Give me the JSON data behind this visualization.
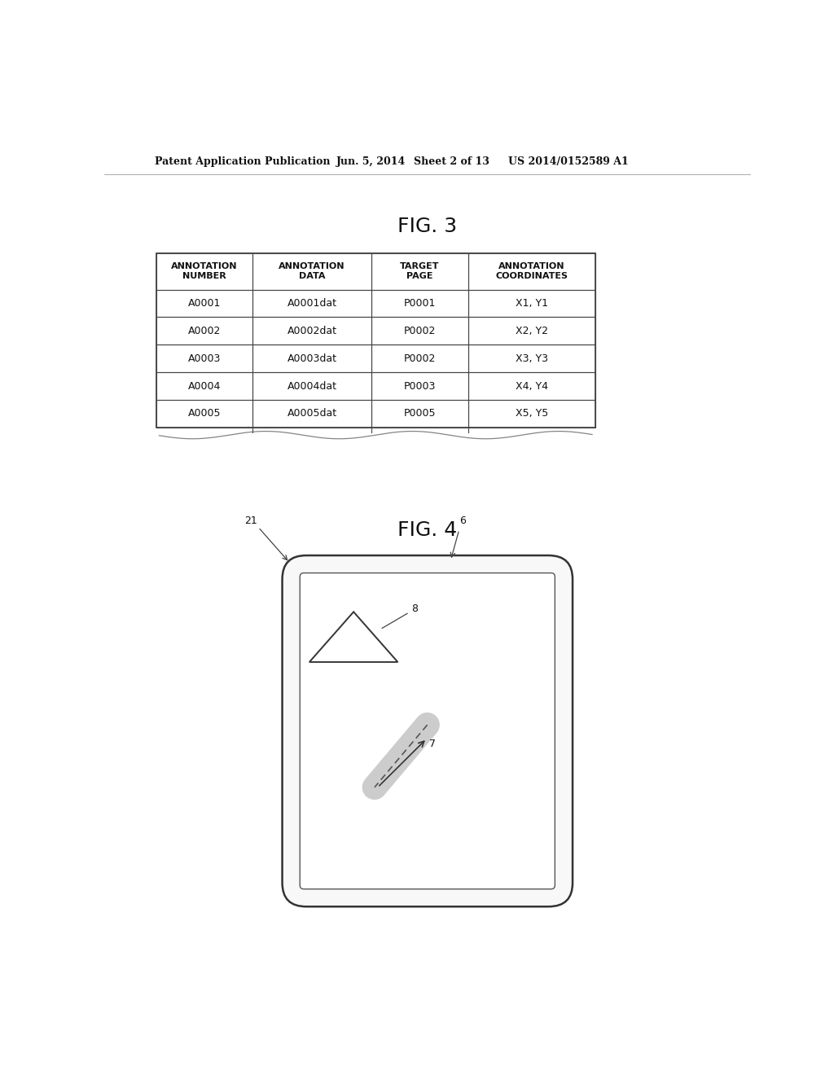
{
  "bg_color": "#ffffff",
  "header_line1": "Patent Application Publication",
  "header_line2": "Jun. 5, 2014",
  "header_line3": "Sheet 2 of 13",
  "header_line4": "US 2014/0152589 A1",
  "fig3_title": "FIG. 3",
  "fig4_title": "FIG. 4",
  "table_headers": [
    "ANNOTATION\nNUMBER",
    "ANNOTATION\nDATA",
    "TARGET\nPAGE",
    "ANNOTATION\nCOORDINATES"
  ],
  "table_rows": [
    [
      "A0001",
      "A0001dat",
      "P0001",
      "X1, Y1"
    ],
    [
      "A0002",
      "A0002dat",
      "P0002",
      "X2, Y2"
    ],
    [
      "A0003",
      "A0003dat",
      "P0002",
      "X3, Y3"
    ],
    [
      "A0004",
      "A0004dat",
      "P0003",
      "X4, Y4"
    ],
    [
      "A0005",
      "A0005dat",
      "P0005",
      "X5, Y5"
    ]
  ],
  "line_color": "#444444",
  "text_color": "#111111"
}
